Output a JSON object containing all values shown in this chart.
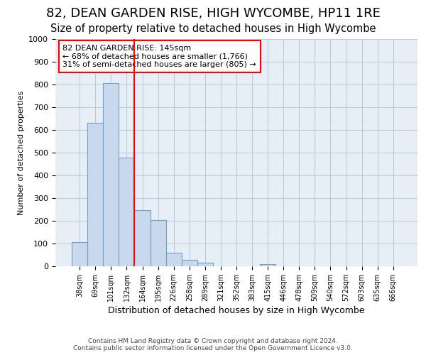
{
  "title": "82, DEAN GARDEN RISE, HIGH WYCOMBE, HP11 1RE",
  "subtitle": "Size of property relative to detached houses in High Wycombe",
  "xlabel": "Distribution of detached houses by size in High Wycombe",
  "ylabel": "Number of detached properties",
  "footer_line1": "Contains HM Land Registry data © Crown copyright and database right 2024.",
  "footer_line2": "Contains public sector information licensed under the Open Government Licence v3.0.",
  "categories": [
    "38sqm",
    "69sqm",
    "101sqm",
    "132sqm",
    "164sqm",
    "195sqm",
    "226sqm",
    "258sqm",
    "289sqm",
    "321sqm",
    "352sqm",
    "383sqm",
    "415sqm",
    "446sqm",
    "478sqm",
    "509sqm",
    "540sqm",
    "572sqm",
    "603sqm",
    "635sqm",
    "666sqm"
  ],
  "values": [
    107,
    630,
    805,
    477,
    248,
    203,
    60,
    28,
    17,
    0,
    0,
    0,
    10,
    0,
    0,
    0,
    0,
    0,
    0,
    0,
    0
  ],
  "bar_color": "#c8d8ed",
  "bar_edge_color": "#6fa0c8",
  "annotation_line1": "82 DEAN GARDEN RISE: 145sqm",
  "annotation_line2": "← 68% of detached houses are smaller (1,766)",
  "annotation_line3": "31% of semi-detached houses are larger (805) →",
  "red_line_index": 3.5,
  "ylim": [
    0,
    1000
  ],
  "yticks": [
    0,
    100,
    200,
    300,
    400,
    500,
    600,
    700,
    800,
    900,
    1000
  ],
  "background_color": "#ffffff",
  "plot_bg_color": "#e8eef5",
  "grid_color": "#b8cce0",
  "title_fontsize": 13,
  "subtitle_fontsize": 10.5
}
